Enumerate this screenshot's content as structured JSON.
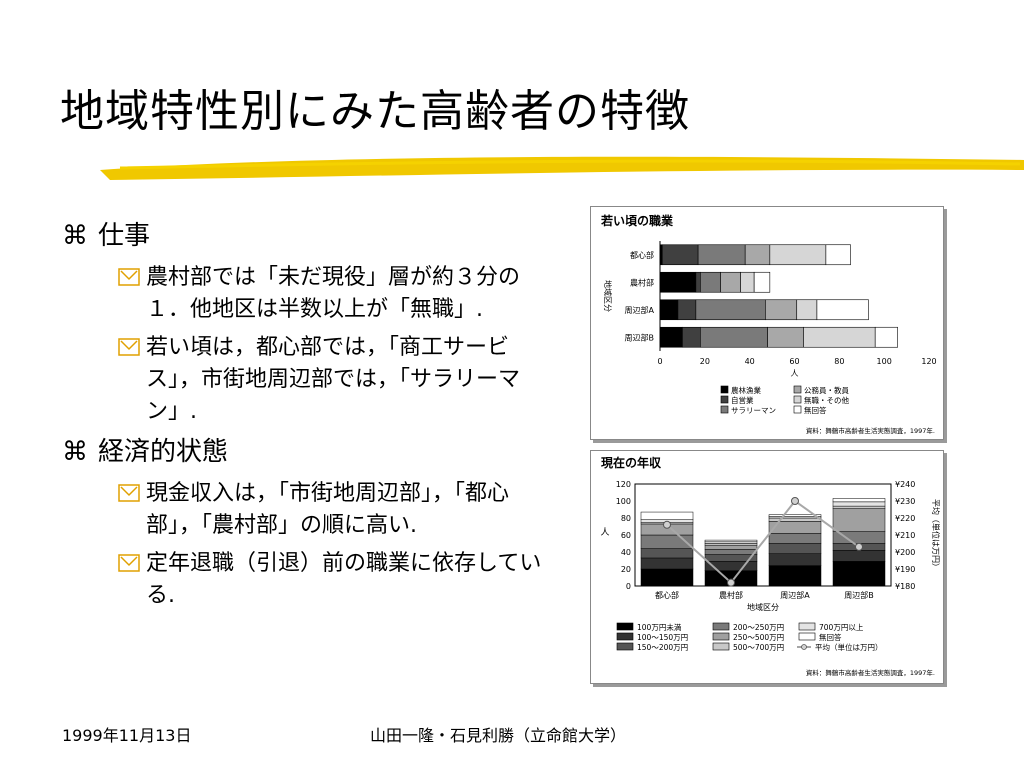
{
  "slide": {
    "title": "地域特性別にみた高齢者の特徴",
    "highlight_color": "#f0c800",
    "bullets": [
      {
        "marker": "⌘",
        "text": "仕事",
        "items": [
          "農村部では「未だ現役」層が約３分の１．他地区は半数以上が「無職」.",
          "若い頃は，都心部では，「商工サービス」，市街地周辺部では，「サラリーマン」."
        ]
      },
      {
        "marker": "⌘",
        "text": "経済的状態",
        "items": [
          "現金収入は，「市街地周辺部」，「都心部」，「農村部」の順に高い.",
          "定年退職（引退）前の職業に依存している."
        ]
      }
    ]
  },
  "footer": {
    "date": "1999年11月13日",
    "author": "山田一隆・石見利勝（立命館大学）"
  },
  "chart_data": [
    {
      "type": "bar",
      "orientation": "horizontal",
      "stacked": true,
      "title": "若い頃の職業",
      "xlabel": "人",
      "ylabel": "地域区分",
      "xlim": [
        0,
        120
      ],
      "xticks": [
        0,
        20,
        40,
        60,
        80,
        100,
        120
      ],
      "categories": [
        "都心部",
        "農村部",
        "周辺部A",
        "周辺部B"
      ],
      "series": [
        {
          "name": "農林漁業",
          "color": "#000000",
          "values": [
            1,
            16,
            8,
            10
          ]
        },
        {
          "name": "自営業",
          "color": "#404040",
          "values": [
            16,
            2,
            8,
            8
          ]
        },
        {
          "name": "サラリーマン",
          "color": "#7a7a7a",
          "values": [
            21,
            9,
            31,
            30
          ]
        },
        {
          "name": "公務員・教員",
          "color": "#a8a8a8",
          "values": [
            11,
            9,
            14,
            16
          ]
        },
        {
          "name": "無職・その他",
          "color": "#d6d6d6",
          "values": [
            25,
            6,
            9,
            32
          ]
        },
        {
          "name": "無回答",
          "color": "#ffffff",
          "values": [
            11,
            7,
            23,
            10
          ]
        }
      ],
      "legend_position": "bottom",
      "source": "資料：舞鶴市高齢者生活実態調査，1997年."
    },
    {
      "type": "bar",
      "stacked": true,
      "title": "現在の年収",
      "xlabel": "地域区分",
      "ylabel": "人",
      "ylim": [
        0,
        120
      ],
      "yticks": [
        0,
        20,
        40,
        60,
        80,
        100,
        120
      ],
      "y2label": "平均（単位は万円）",
      "y2lim": [
        180,
        240
      ],
      "y2ticks": [
        "¥180",
        "¥190",
        "¥200",
        "¥210",
        "¥220",
        "¥230",
        "¥240"
      ],
      "categories": [
        "都心部",
        "農村部",
        "周辺部A",
        "周辺部B"
      ],
      "series": [
        {
          "name": "100万円未満",
          "color": "#000000",
          "values": [
            20,
            18,
            24,
            29
          ]
        },
        {
          "name": "100〜150万円",
          "color": "#333333",
          "values": [
            13,
            11,
            14,
            13
          ]
        },
        {
          "name": "150〜200万円",
          "color": "#555555",
          "values": [
            11,
            8,
            12,
            8
          ]
        },
        {
          "name": "200〜250万円",
          "color": "#7a7a7a",
          "values": [
            16,
            6,
            12,
            14
          ]
        },
        {
          "name": "250〜500万円",
          "color": "#a0a0a0",
          "values": [
            13,
            5,
            14,
            27
          ]
        },
        {
          "name": "500〜700万円",
          "color": "#c8c8c8",
          "values": [
            2,
            2,
            4,
            3
          ]
        },
        {
          "name": "700万円以上",
          "color": "#e4e4e4",
          "values": [
            3,
            2,
            2,
            5
          ]
        },
        {
          "name": "無回答",
          "color": "#ffffff",
          "values": [
            9,
            2,
            2,
            4
          ]
        }
      ],
      "line_series": {
        "name": "平均（単位は万円）",
        "axis": "y2",
        "values": [
          216,
          182,
          230,
          203
        ],
        "color": "#a8a8a8"
      },
      "legend_position": "bottom",
      "source": "資料：舞鶴市高齢者生活実態調査，1997年."
    }
  ]
}
